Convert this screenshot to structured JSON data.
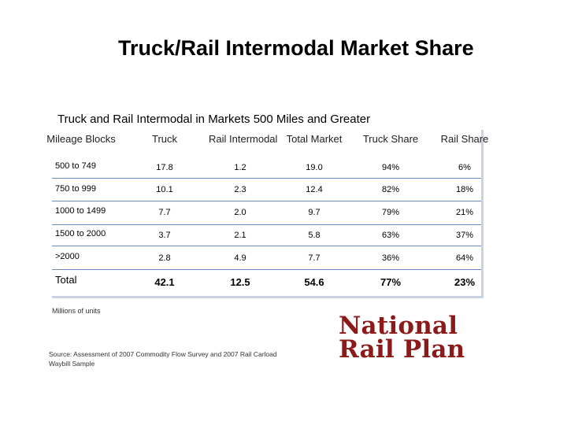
{
  "title": "Truck/Rail Intermodal Market Share",
  "subtitle": "Truck and Rail Intermodal in Markets 500 Miles and Greater",
  "table": {
    "headers": {
      "mileage": "Mileage Blocks",
      "truck": "Truck",
      "rail": "Rail Intermodal",
      "total_market": "Total Market",
      "truck_share": "Truck Share",
      "rail_share": "Rail Share"
    },
    "rows": [
      {
        "block": "500 to 749",
        "truck": "17.8",
        "rail": "1.2",
        "total": "19.0",
        "truck_share": "94%",
        "rail_share": "6%"
      },
      {
        "block": "750 to 999",
        "truck": "10.1",
        "rail": "2.3",
        "total": "12.4",
        "truck_share": "82%",
        "rail_share": "18%"
      },
      {
        "block": "1000 to 1499",
        "truck": "7.7",
        "rail": "2.0",
        "total": "9.7",
        "truck_share": "79%",
        "rail_share": "21%"
      },
      {
        "block": "1500 to 2000",
        "truck": "3.7",
        "rail": "2.1",
        "total": "5.8",
        "truck_share": "63%",
        "rail_share": "37%"
      },
      {
        "block": ">2000",
        "truck": "2.8",
        "rail": "4.9",
        "total": "7.7",
        "truck_share": "36%",
        "rail_share": "64%"
      }
    ],
    "total": {
      "label": "Total",
      "truck": "42.1",
      "rail": "12.5",
      "total": "54.6",
      "truck_share": "77%",
      "rail_share": "23%"
    }
  },
  "units_note": "Millions of units",
  "source": "Source: Assessment of 2007 Commodity Flow Survey and 2007 Rail Carload Waybill Sample",
  "logo": {
    "line1": "National",
    "line2": "Rail Plan"
  },
  "colors": {
    "rule": "#6f8bbd",
    "shadow": "#c9d3e2",
    "logo": "#8b1a1a"
  }
}
